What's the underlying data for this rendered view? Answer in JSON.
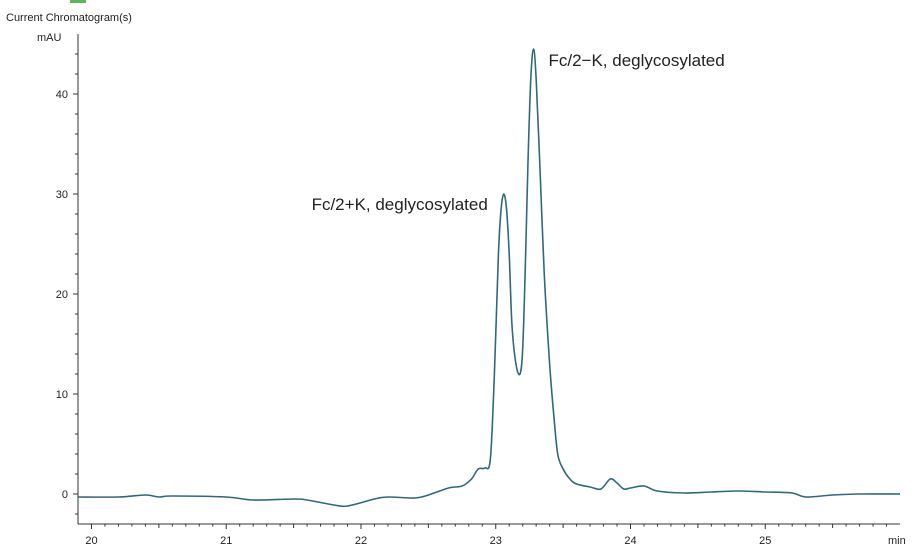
{
  "colors": {
    "trace": "#2e6a7a",
    "axis": "#333333",
    "accent_bar": "#5bb85b"
  },
  "chart_data": {
    "type": "line",
    "title": "Current Chromatogram(s)",
    "ylabel": "mAU",
    "xlabel": "min",
    "xlim": [
      19.9,
      26.0
    ],
    "ylim": [
      -3,
      46
    ],
    "x_ticks": [
      "20",
      "21",
      "22",
      "23",
      "24",
      "25"
    ],
    "x_tick_values": [
      20,
      21,
      22,
      23,
      24,
      25
    ],
    "y_ticks": [
      "0",
      "10",
      "20",
      "30",
      "40"
    ],
    "y_tick_values": [
      0,
      10,
      20,
      30,
      40
    ],
    "grid": false,
    "annotations": [
      {
        "text": "Fc/2−K, deglycosylated",
        "x": 23.28,
        "y": 44.5
      },
      {
        "text": "Fc/2+K, deglycosylated",
        "x": 23.06,
        "y": 30.0
      }
    ],
    "series": [
      {
        "x": [
          19.9,
          20.2,
          20.4,
          20.5,
          20.6,
          21.0,
          21.2,
          21.5,
          21.6,
          21.8,
          21.9,
          22.1,
          22.2,
          22.4,
          22.5,
          22.65,
          22.75,
          22.82,
          22.87,
          22.92,
          22.96,
          22.99,
          23.02,
          23.04,
          23.06,
          23.08,
          23.1,
          23.12,
          23.15,
          23.18,
          23.2,
          23.22,
          23.24,
          23.26,
          23.28,
          23.3,
          23.33,
          23.36,
          23.4,
          23.43,
          23.46,
          23.5,
          23.55,
          23.6,
          23.7,
          23.78,
          23.85,
          23.9,
          23.95,
          24.0,
          24.1,
          24.2,
          24.4,
          24.6,
          24.8,
          25.0,
          25.2,
          25.3,
          25.5,
          25.7,
          26.0
        ],
        "y": [
          -0.3,
          -0.3,
          -0.1,
          -0.3,
          -0.2,
          -0.3,
          -0.6,
          -0.5,
          -0.6,
          -1.1,
          -1.2,
          -0.5,
          -0.3,
          -0.4,
          -0.1,
          0.6,
          0.8,
          1.5,
          2.5,
          2.6,
          3.5,
          12.0,
          24.0,
          28.5,
          30.0,
          28.5,
          24.0,
          17.0,
          13.0,
          12.0,
          14.5,
          23.0,
          33.5,
          41.5,
          44.5,
          41.5,
          32.0,
          22.0,
          13.0,
          8.0,
          4.0,
          2.5,
          1.5,
          1.0,
          0.7,
          0.5,
          1.5,
          1.1,
          0.5,
          0.6,
          0.8,
          0.3,
          0.1,
          0.2,
          0.3,
          0.2,
          0.1,
          -0.3,
          -0.1,
          0.0,
          0.0
        ]
      }
    ]
  }
}
